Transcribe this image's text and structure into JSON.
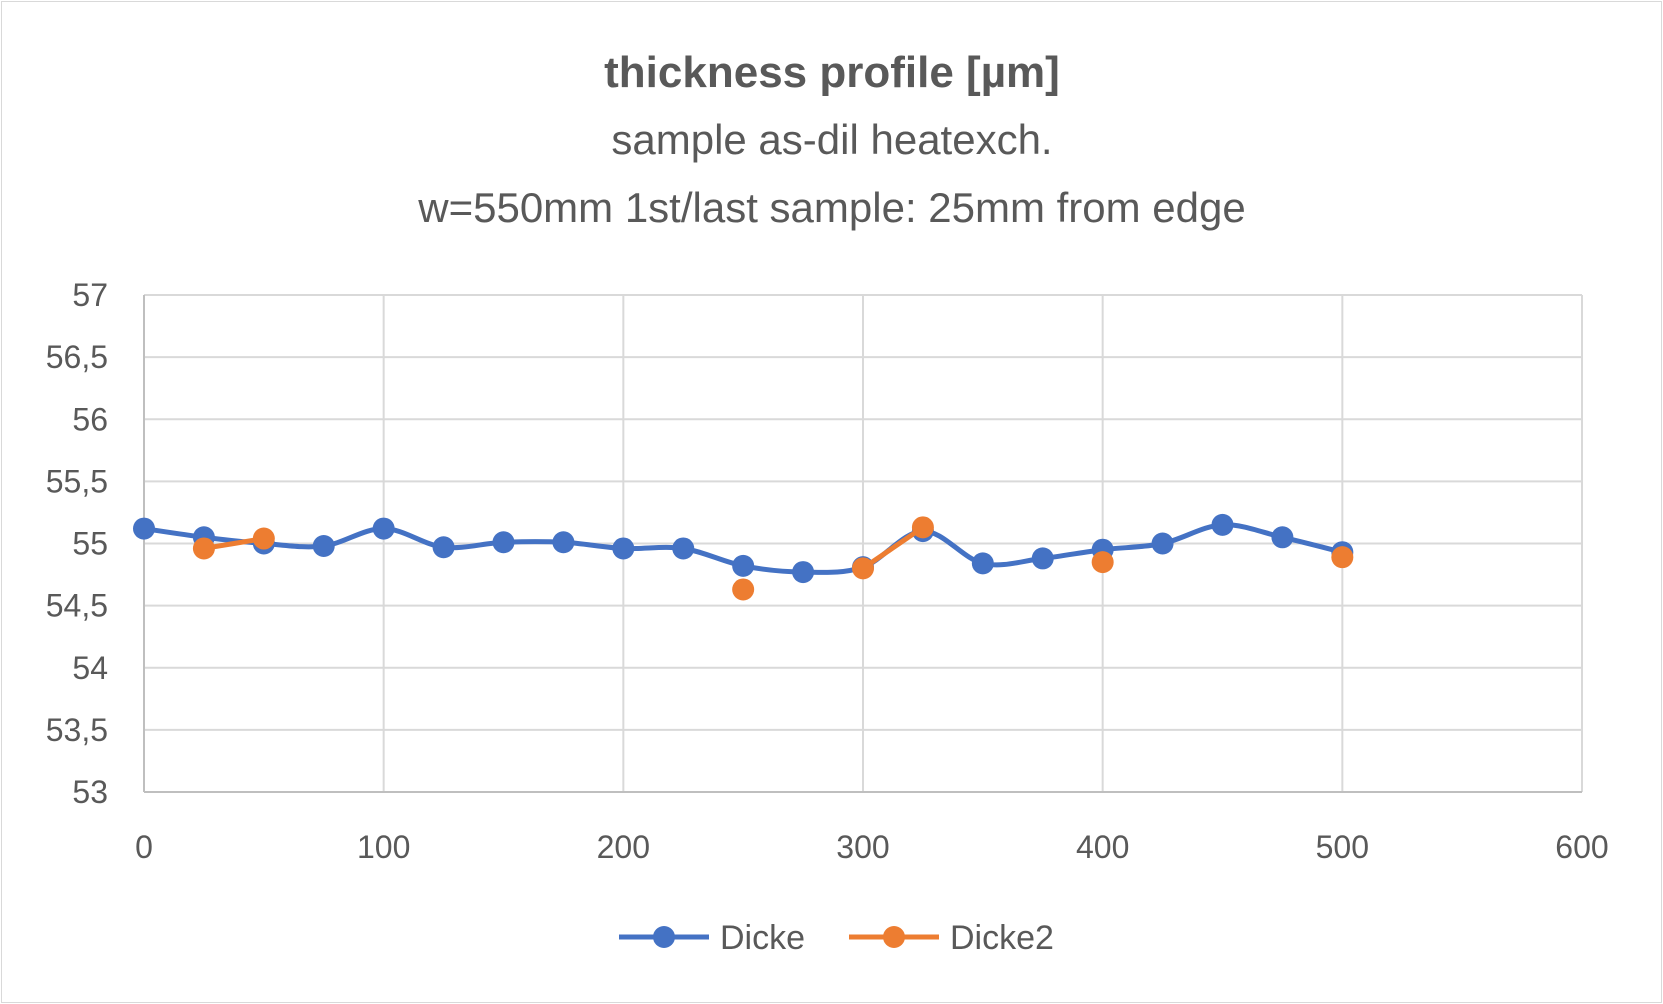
{
  "chart_data": {
    "type": "line",
    "title": "thickness profile [µm]",
    "subtitle_lines": [
      "sample as-dil heatexch.",
      "w=550mm 1st/last sample: 25mm from edge"
    ],
    "xlim": [
      0,
      600
    ],
    "ylim": [
      53,
      57
    ],
    "x_ticks": [
      0,
      100,
      200,
      300,
      400,
      500,
      600
    ],
    "y_ticks": [
      53,
      53.5,
      54,
      54.5,
      55,
      55.5,
      56,
      56.5,
      57
    ],
    "x_tick_labels": [
      "0",
      "100",
      "200",
      "300",
      "400",
      "500",
      "600"
    ],
    "y_tick_labels": [
      "53",
      "53,5",
      "54",
      "54,5",
      "55",
      "55,5",
      "56",
      "56,5",
      "57"
    ],
    "grid": true,
    "legend_position": "bottom",
    "series": [
      {
        "name": "Dicke",
        "color": "#4472c4",
        "connect_gaps": true,
        "points": [
          [
            0,
            55.12
          ],
          [
            25,
            55.05
          ],
          [
            50,
            55.0
          ],
          [
            75,
            54.98
          ],
          [
            100,
            55.12
          ],
          [
            125,
            54.97
          ],
          [
            150,
            55.01
          ],
          [
            175,
            55.01
          ],
          [
            200,
            54.96
          ],
          [
            225,
            54.96
          ],
          [
            250,
            54.82
          ],
          [
            275,
            54.77
          ],
          [
            300,
            54.81
          ],
          [
            325,
            55.1
          ],
          [
            350,
            54.84
          ],
          [
            375,
            54.88
          ],
          [
            400,
            54.95
          ],
          [
            425,
            55.0
          ],
          [
            450,
            55.15
          ],
          [
            475,
            55.05
          ],
          [
            500,
            54.93
          ]
        ]
      },
      {
        "name": "Dicke2",
        "color": "#ed7d31",
        "connect_gaps": false,
        "points": [
          [
            25,
            54.96
          ],
          [
            50,
            55.04
          ],
          [
            75,
            null
          ],
          [
            100,
            null
          ],
          [
            125,
            null
          ],
          [
            150,
            null
          ],
          [
            175,
            null
          ],
          [
            200,
            null
          ],
          [
            225,
            null
          ],
          [
            250,
            54.63
          ],
          [
            275,
            null
          ],
          [
            300,
            54.8
          ],
          [
            325,
            55.13
          ],
          [
            350,
            null
          ],
          [
            375,
            null
          ],
          [
            400,
            54.85
          ],
          [
            425,
            null
          ],
          [
            450,
            null
          ],
          [
            475,
            null
          ],
          [
            500,
            54.89
          ]
        ]
      }
    ]
  }
}
